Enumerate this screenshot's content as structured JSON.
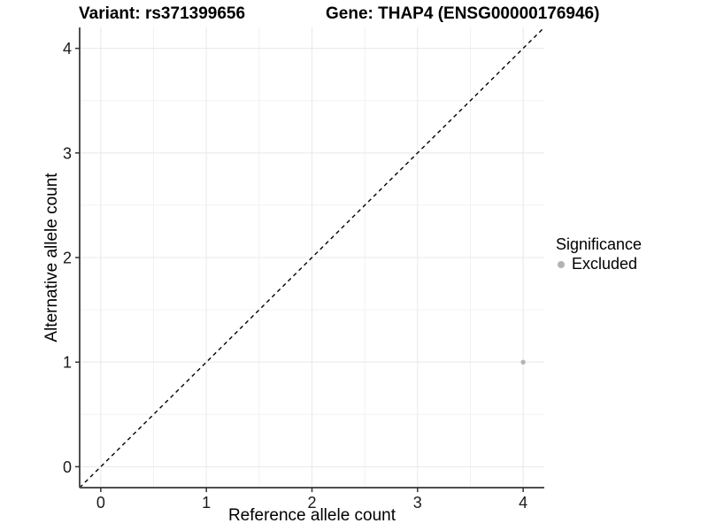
{
  "chart_data": {
    "type": "scatter",
    "titles": {
      "left": "Variant: rs371399656",
      "right": "Gene: THAP4 (ENSG00000176946)"
    },
    "xlabel": "Reference allele count",
    "ylabel": "Alternative allele count",
    "xlim": [
      -0.2,
      4.2
    ],
    "ylim": [
      -0.2,
      4.2
    ],
    "xticks": [
      0,
      1,
      2,
      3,
      4
    ],
    "yticks": [
      0,
      1,
      2,
      3,
      4
    ],
    "x_minor_gridlines": [
      0.5,
      1.5,
      2.5,
      3.5
    ],
    "y_minor_gridlines": [
      0.5,
      1.5,
      2.5,
      3.5
    ],
    "grid": "major+minor",
    "identity_line": {
      "from": [
        -0.2,
        -0.2
      ],
      "to": [
        4.2,
        4.2
      ],
      "style": "dashed",
      "color": "#000000"
    },
    "series": [
      {
        "name": "Excluded",
        "color": "#b3b3b3",
        "points": [
          {
            "x": 4,
            "y": 1
          }
        ]
      }
    ],
    "legend": {
      "title": "Significance",
      "position": "right",
      "entries": [
        {
          "label": "Excluded",
          "color": "#b3b3b3"
        }
      ]
    },
    "colors": {
      "major_grid": "#e8e8e8",
      "minor_grid": "#f2f2f2",
      "axis_line": "#4f4f4f",
      "tick_mark": "#333333",
      "tick_text": "#1a1a1a"
    }
  }
}
